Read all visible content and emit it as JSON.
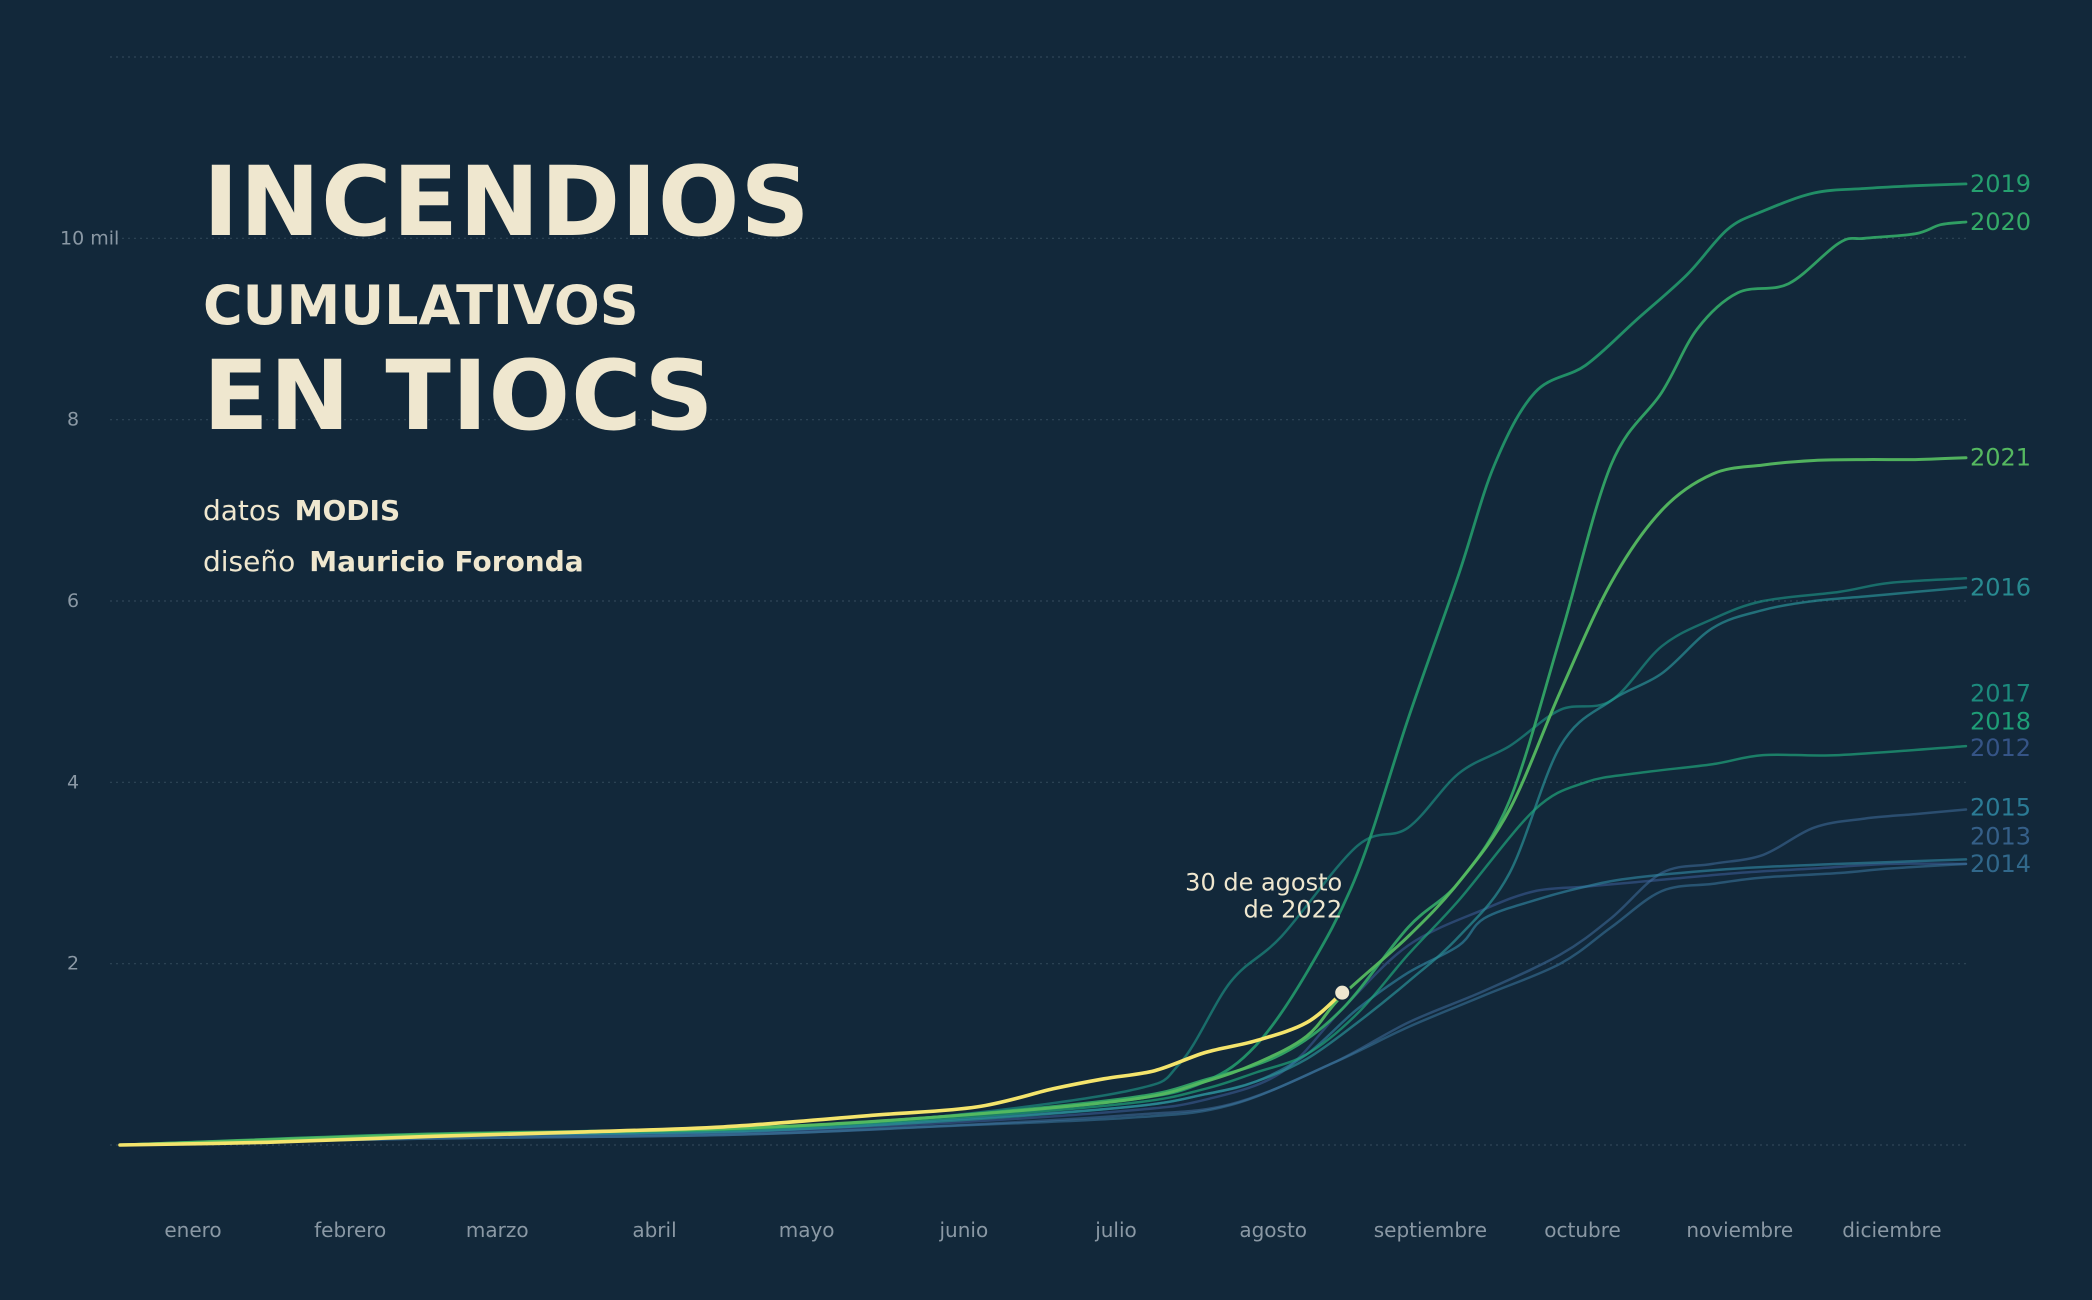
{
  "title": {
    "line1": "INCENDIOS",
    "line2": "CUMULATIVOS",
    "line3": "EN TIOCS"
  },
  "credits": {
    "data_label": "datos",
    "data_value": "MODIS",
    "design_label": "diseño",
    "design_value": "Mauricio Foronda"
  },
  "annotation": {
    "line1": "30 de agosto",
    "line2": "de 2022",
    "x_day": 242,
    "y": 1680
  },
  "colors": {
    "background": "#12283a",
    "text": "#efe7cf",
    "axis_text": "#8a98a4",
    "grid": "#2f4557",
    "highlight": "#f4e46c"
  },
  "chart_data": {
    "type": "line",
    "x_unit": "day of year",
    "ylim": [
      0,
      12000
    ],
    "xlim": [
      1,
      365
    ],
    "y_ticks": [
      {
        "value": 2000,
        "label": "2"
      },
      {
        "value": 4000,
        "label": "4"
      },
      {
        "value": 6000,
        "label": "6"
      },
      {
        "value": 8000,
        "label": "8"
      },
      {
        "value": 10000,
        "label": "10 mil"
      }
    ],
    "grid_values": [
      0,
      2000,
      4000,
      6000,
      8000,
      10000,
      12000
    ],
    "months": [
      {
        "label": "enero",
        "day": 15
      },
      {
        "label": "febrero",
        "day": 46
      },
      {
        "label": "marzo",
        "day": 75
      },
      {
        "label": "abril",
        "day": 106
      },
      {
        "label": "mayo",
        "day": 136
      },
      {
        "label": "junio",
        "day": 167
      },
      {
        "label": "julio",
        "day": 197
      },
      {
        "label": "agosto",
        "day": 228
      },
      {
        "label": "septiembre",
        "day": 259
      },
      {
        "label": "octubre",
        "day": 289
      },
      {
        "label": "noviembre",
        "day": 320
      },
      {
        "label": "diciembre",
        "day": 350
      }
    ],
    "grid": true,
    "legend": "end-of-line labels",
    "series": [
      {
        "name": "2012",
        "label_y": 4380,
        "color": "#3e5f9a",
        "opacity": 0.55,
        "width": 2.5,
        "points": [
          [
            1,
            0
          ],
          [
            60,
            90
          ],
          [
            120,
            130
          ],
          [
            160,
            230
          ],
          [
            200,
            380
          ],
          [
            215,
            500
          ],
          [
            230,
            800
          ],
          [
            242,
            1500
          ],
          [
            255,
            2200
          ],
          [
            270,
            2600
          ],
          [
            280,
            2800
          ],
          [
            290,
            2850
          ],
          [
            300,
            2900
          ],
          [
            320,
            3000
          ],
          [
            335,
            3050
          ],
          [
            350,
            3100
          ],
          [
            365,
            3100
          ]
        ]
      },
      {
        "name": "2013",
        "label_y": 3400,
        "color": "#3f6d9c",
        "opacity": 0.55,
        "width": 2.5,
        "points": [
          [
            1,
            0
          ],
          [
            60,
            70
          ],
          [
            120,
            110
          ],
          [
            160,
            200
          ],
          [
            200,
            330
          ],
          [
            220,
            450
          ],
          [
            240,
            900
          ],
          [
            255,
            1350
          ],
          [
            270,
            1700
          ],
          [
            285,
            2100
          ],
          [
            295,
            2500
          ],
          [
            305,
            3000
          ],
          [
            315,
            3100
          ],
          [
            325,
            3200
          ],
          [
            335,
            3500
          ],
          [
            345,
            3600
          ],
          [
            355,
            3650
          ],
          [
            365,
            3700
          ]
        ]
      },
      {
        "name": "2014",
        "label_y": 3100,
        "color": "#3a78a0",
        "opacity": 0.55,
        "width": 2.5,
        "points": [
          [
            1,
            0
          ],
          [
            60,
            70
          ],
          [
            120,
            110
          ],
          [
            160,
            200
          ],
          [
            200,
            300
          ],
          [
            220,
            440
          ],
          [
            240,
            900
          ],
          [
            255,
            1300
          ],
          [
            270,
            1650
          ],
          [
            285,
            2000
          ],
          [
            295,
            2400
          ],
          [
            305,
            2800
          ],
          [
            315,
            2880
          ],
          [
            325,
            2950
          ],
          [
            340,
            3000
          ],
          [
            350,
            3050
          ],
          [
            365,
            3100
          ]
        ]
      },
      {
        "name": "2015",
        "label_y": 3720,
        "color": "#2f84a0",
        "opacity": 0.65,
        "width": 2.5,
        "points": [
          [
            1,
            0
          ],
          [
            60,
            100
          ],
          [
            120,
            140
          ],
          [
            160,
            260
          ],
          [
            200,
            420
          ],
          [
            215,
            560
          ],
          [
            225,
            700
          ],
          [
            235,
            1000
          ],
          [
            245,
            1500
          ],
          [
            255,
            1900
          ],
          [
            265,
            2200
          ],
          [
            270,
            2500
          ],
          [
            280,
            2700
          ],
          [
            290,
            2850
          ],
          [
            300,
            2950
          ],
          [
            320,
            3050
          ],
          [
            340,
            3100
          ],
          [
            365,
            3150
          ]
        ]
      },
      {
        "name": "2016",
        "label_y": 6150,
        "color": "#2a8f95",
        "opacity": 0.7,
        "width": 2.5,
        "points": [
          [
            1,
            0
          ],
          [
            60,
            100
          ],
          [
            120,
            150
          ],
          [
            160,
            250
          ],
          [
            200,
            420
          ],
          [
            215,
            560
          ],
          [
            225,
            700
          ],
          [
            235,
            950
          ],
          [
            245,
            1350
          ],
          [
            255,
            1800
          ],
          [
            265,
            2300
          ],
          [
            275,
            3000
          ],
          [
            285,
            4400
          ],
          [
            295,
            4900
          ],
          [
            305,
            5200
          ],
          [
            315,
            5700
          ],
          [
            325,
            5900
          ],
          [
            335,
            6000
          ],
          [
            345,
            6050
          ],
          [
            355,
            6100
          ],
          [
            365,
            6150
          ]
        ]
      },
      {
        "name": "2017",
        "label_y": 4980,
        "color": "#1e9b8a",
        "opacity": 0.6,
        "width": 2.5,
        "points": [
          [
            1,
            0
          ],
          [
            60,
            110
          ],
          [
            120,
            180
          ],
          [
            160,
            300
          ],
          [
            200,
            600
          ],
          [
            210,
            900
          ],
          [
            220,
            1800
          ],
          [
            230,
            2300
          ],
          [
            245,
            3300
          ],
          [
            255,
            3500
          ],
          [
            265,
            4100
          ],
          [
            275,
            4400
          ],
          [
            285,
            4800
          ],
          [
            295,
            4900
          ],
          [
            305,
            5500
          ],
          [
            315,
            5800
          ],
          [
            325,
            6000
          ],
          [
            340,
            6100
          ],
          [
            350,
            6200
          ],
          [
            365,
            6250
          ]
        ]
      },
      {
        "name": "2018",
        "label_y": 4670,
        "color": "#20a47a",
        "opacity": 0.7,
        "width": 2.5,
        "points": [
          [
            1,
            0
          ],
          [
            60,
            110
          ],
          [
            120,
            170
          ],
          [
            160,
            280
          ],
          [
            200,
            460
          ],
          [
            215,
            620
          ],
          [
            225,
            800
          ],
          [
            235,
            1000
          ],
          [
            245,
            1450
          ],
          [
            255,
            2100
          ],
          [
            265,
            2700
          ],
          [
            280,
            3700
          ],
          [
            290,
            4000
          ],
          [
            300,
            4100
          ],
          [
            315,
            4200
          ],
          [
            325,
            4300
          ],
          [
            340,
            4300
          ],
          [
            365,
            4400
          ]
        ]
      },
      {
        "name": "2019",
        "label_y": 10600,
        "color": "#25a06f",
        "opacity": 0.85,
        "width": 2.8,
        "points": [
          [
            1,
            0
          ],
          [
            60,
            110
          ],
          [
            120,
            170
          ],
          [
            160,
            300
          ],
          [
            200,
            500
          ],
          [
            215,
            700
          ],
          [
            225,
            1100
          ],
          [
            235,
            1900
          ],
          [
            245,
            3000
          ],
          [
            255,
            4700
          ],
          [
            265,
            6300
          ],
          [
            272,
            7500
          ],
          [
            280,
            8300
          ],
          [
            290,
            8600
          ],
          [
            300,
            9100
          ],
          [
            310,
            9600
          ],
          [
            318,
            10100
          ],
          [
            325,
            10300
          ],
          [
            335,
            10500
          ],
          [
            345,
            10550
          ],
          [
            355,
            10580
          ],
          [
            365,
            10600
          ]
        ]
      },
      {
        "name": "2020",
        "label_y": 10180,
        "color": "#34ab68",
        "opacity": 0.9,
        "width": 2.8,
        "points": [
          [
            1,
            0
          ],
          [
            60,
            120
          ],
          [
            120,
            180
          ],
          [
            160,
            300
          ],
          [
            200,
            520
          ],
          [
            215,
            720
          ],
          [
            230,
            1000
          ],
          [
            242,
            1500
          ],
          [
            255,
            2400
          ],
          [
            265,
            2900
          ],
          [
            275,
            3800
          ],
          [
            285,
            5600
          ],
          [
            295,
            7500
          ],
          [
            305,
            8300
          ],
          [
            312,
            9000
          ],
          [
            320,
            9400
          ],
          [
            330,
            9500
          ],
          [
            340,
            9950
          ],
          [
            345,
            10000
          ],
          [
            355,
            10050
          ],
          [
            360,
            10150
          ],
          [
            365,
            10180
          ]
        ]
      },
      {
        "name": "2021",
        "label_y": 7580,
        "color": "#55b960",
        "opacity": 0.95,
        "width": 3,
        "points": [
          [
            1,
            0
          ],
          [
            60,
            110
          ],
          [
            120,
            180
          ],
          [
            160,
            300
          ],
          [
            200,
            500
          ],
          [
            215,
            700
          ],
          [
            225,
            900
          ],
          [
            235,
            1200
          ],
          [
            242,
            1650
          ],
          [
            255,
            2300
          ],
          [
            265,
            2900
          ],
          [
            275,
            3700
          ],
          [
            285,
            5000
          ],
          [
            295,
            6200
          ],
          [
            305,
            7000
          ],
          [
            315,
            7400
          ],
          [
            325,
            7500
          ],
          [
            335,
            7550
          ],
          [
            345,
            7560
          ],
          [
            355,
            7560
          ],
          [
            365,
            7580
          ]
        ]
      },
      {
        "name": "2022",
        "highlight": true,
        "color": "#f4e46c",
        "opacity": 1,
        "width": 3.6,
        "points": [
          [
            1,
            0
          ],
          [
            30,
            30
          ],
          [
            60,
            90
          ],
          [
            90,
            140
          ],
          [
            120,
            200
          ],
          [
            150,
            330
          ],
          [
            170,
            420
          ],
          [
            185,
            620
          ],
          [
            195,
            730
          ],
          [
            205,
            820
          ],
          [
            215,
            1020
          ],
          [
            225,
            1150
          ],
          [
            235,
            1350
          ],
          [
            242,
            1680
          ]
        ]
      }
    ]
  }
}
